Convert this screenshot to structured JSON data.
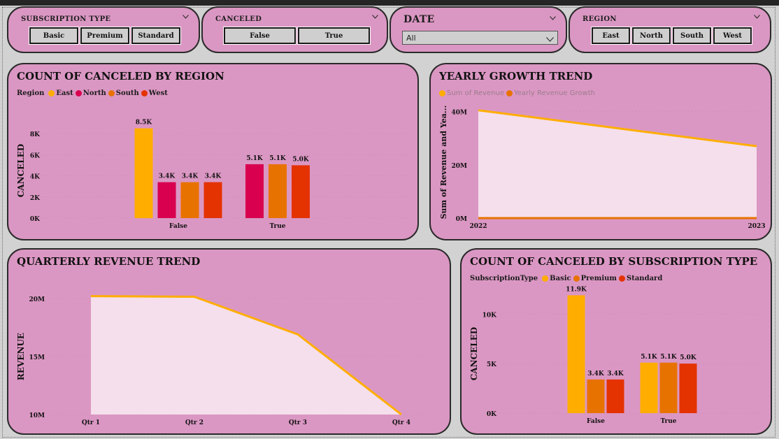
{
  "slicers": {
    "subscription_type": {
      "title": "SUBSCRIPTION TYPE",
      "options": [
        "Basic",
        "Premium",
        "Standard"
      ]
    },
    "canceled": {
      "title": "CANCELED",
      "options": [
        "False",
        "True"
      ]
    },
    "date": {
      "title": "DATE",
      "selected": "All"
    },
    "region": {
      "title": "REGION",
      "options": [
        "East",
        "North",
        "South",
        "West"
      ]
    }
  },
  "colors": {
    "east": "#ffae00",
    "north": "#d8004f",
    "south": "#e87200",
    "west": "#e43200",
    "basic": "#ffae00",
    "premium": "#e87200",
    "standard": "#e43200",
    "area_fill": "#f5dfec"
  },
  "charts": {
    "canceled_by_region": {
      "title": "COUNT OF CANCELED BY REGION",
      "legend_title": "Region",
      "ylabel": "CANCELED"
    },
    "yearly_growth": {
      "title": "YEARLY GROWTH TREND",
      "ylabel": "Sum of Revenue and Yea..."
    },
    "quarterly_revenue": {
      "title": "QUARTERLY REVENUE TREND",
      "ylabel": "REVENUE"
    },
    "canceled_by_subscription": {
      "title": "COUNT OF CANCELED BY SUBSCRIPTION TYPE",
      "legend_title": "SubscriptionType",
      "ylabel": "CANCELED"
    }
  },
  "chart_data": [
    {
      "id": "canceled_by_region",
      "type": "bar",
      "categories": [
        "False",
        "True"
      ],
      "series": [
        {
          "name": "East",
          "values": [
            8500,
            null
          ],
          "labels": [
            "8.5K",
            ""
          ],
          "color": "#ffae00"
        },
        {
          "name": "North",
          "values": [
            3400,
            5100
          ],
          "labels": [
            "3.4K",
            "5.1K"
          ],
          "color": "#d8004f"
        },
        {
          "name": "South",
          "values": [
            3400,
            5100
          ],
          "labels": [
            "3.4K",
            "5.1K"
          ],
          "color": "#e87200"
        },
        {
          "name": "West",
          "values": [
            3400,
            5000
          ],
          "labels": [
            "3.4K",
            "5.0K"
          ],
          "color": "#e43200"
        }
      ],
      "yticks": [
        0,
        2000,
        4000,
        6000,
        8000
      ],
      "ytick_labels": [
        "0K",
        "2K",
        "4K",
        "6K",
        "8K"
      ],
      "ylim": [
        0,
        9000
      ],
      "ylabel": "CANCELED"
    },
    {
      "id": "yearly_growth",
      "type": "area",
      "x": [
        "2022",
        "2023"
      ],
      "series": [
        {
          "name": "Sum of Revenue",
          "values": [
            40500000,
            27000000
          ],
          "color": "#ffae00"
        },
        {
          "name": "Yearly Revenue Growth",
          "values": [
            0,
            0
          ],
          "color": "#e87200"
        }
      ],
      "yticks": [
        0,
        20000000,
        40000000
      ],
      "ytick_labels": [
        "0M",
        "20M",
        "40M"
      ],
      "ylim": [
        0,
        42000000
      ],
      "ylabel": "Sum of Revenue and Yea..."
    },
    {
      "id": "quarterly_revenue",
      "type": "area",
      "x": [
        "Qtr 1",
        "Qtr 2",
        "Qtr 3",
        "Qtr 4"
      ],
      "series": [
        {
          "name": "Revenue",
          "values": [
            20200000,
            20150000,
            16900000,
            10000000
          ],
          "color": "#ffae00"
        }
      ],
      "yticks": [
        10000000,
        15000000,
        20000000
      ],
      "ytick_labels": [
        "10M",
        "15M",
        "20M"
      ],
      "ylim": [
        10000000,
        20000000
      ],
      "ylabel": "REVENUE"
    },
    {
      "id": "canceled_by_subscription",
      "type": "bar",
      "categories": [
        "False",
        "True"
      ],
      "series": [
        {
          "name": "Basic",
          "values": [
            11900,
            5100
          ],
          "labels": [
            "11.9K",
            "5.1K"
          ],
          "color": "#ffae00"
        },
        {
          "name": "Premium",
          "values": [
            3400,
            5100
          ],
          "labels": [
            "3.4K",
            "5.1K"
          ],
          "color": "#e87200"
        },
        {
          "name": "Standard",
          "values": [
            3400,
            5000
          ],
          "labels": [
            "3.4K",
            "5.0K"
          ],
          "color": "#e43200"
        }
      ],
      "yticks": [
        0,
        5000,
        10000
      ],
      "ytick_labels": [
        "0K",
        "5K",
        "10K"
      ],
      "ylim": [
        0,
        12000
      ],
      "ylabel": "CANCELED"
    }
  ]
}
